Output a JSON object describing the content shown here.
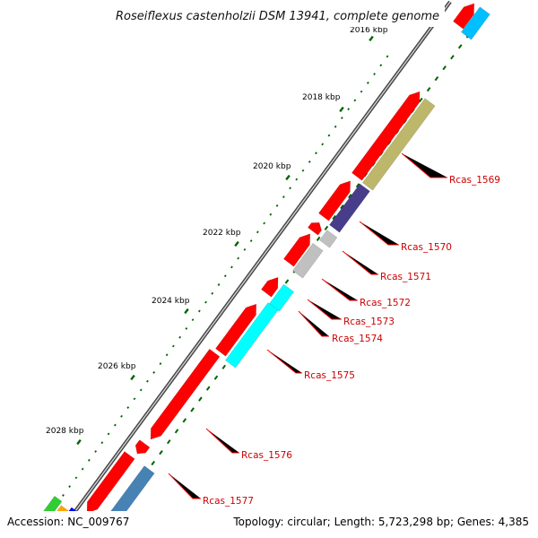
{
  "title": "Roseiflexus castenholzii DSM 13941, complete genome",
  "footer": {
    "accession": "Accession: NC_009767",
    "summary": "Topology: circular; Length: 5,723,298 bp; Genes: 4,385"
  },
  "scale_labels": [
    "2016 kbp",
    "2018 kbp",
    "2020 kbp",
    "2022 kbp",
    "2024 kbp",
    "2026 kbp",
    "2028 kbp"
  ],
  "gene_labels": [
    "Rcas_1569",
    "Rcas_1570",
    "Rcas_1571",
    "Rcas_1572",
    "Rcas_1573",
    "Rcas_1574",
    "Rcas_1575",
    "Rcas_1576",
    "Rcas_1577"
  ],
  "colors": {
    "gene_red": "#ff0000",
    "khaki": "#bdb76b",
    "slate_blue": "#483d8b",
    "light_gray": "#c0c0c0",
    "cyan": "#00ffff",
    "deep_sky_blue": "#00bfff",
    "steel_blue": "#4682b4",
    "green": "#32cd32",
    "orange": "#ffa500",
    "blue": "#0000ff",
    "tick_green": "#006400",
    "label_line_red": "#ff0000"
  }
}
